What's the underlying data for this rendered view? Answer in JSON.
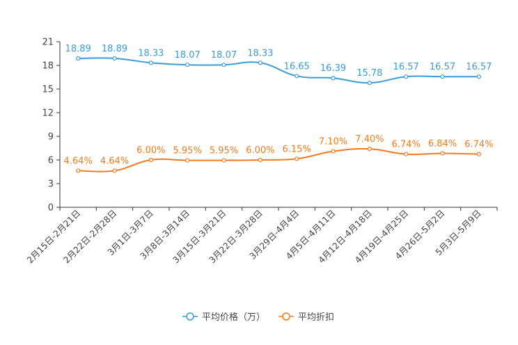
{
  "chart_data": {
    "type": "line",
    "title": "",
    "xlabel": "",
    "ylabel": "",
    "ylim": [
      0,
      21
    ],
    "yticks": [
      0,
      3,
      6,
      9,
      12,
      15,
      18,
      21
    ],
    "ytick_labels": [
      "0",
      "3",
      "6",
      "9",
      "12",
      "15",
      "18",
      "21"
    ],
    "grid": false,
    "legend_position": "bottom-center",
    "categories": [
      "2月15日-2月21日",
      "2月22日-2月28日",
      "3月1日-3月7日",
      "3月8日-3月14日",
      "3月15日-3月21日",
      "3月22日-3月28日",
      "3月29日-4月4日",
      "4月5日-4月11日",
      "4月12日-4月18日",
      "4月19日-4月25日",
      "4月26日-5月2日",
      "5月3日-5月9日"
    ],
    "series": [
      {
        "name": "平均价格（万）",
        "color": "#3a9bd5",
        "values": [
          18.89,
          18.89,
          18.33,
          18.07,
          18.07,
          18.33,
          16.65,
          16.39,
          15.78,
          16.57,
          16.57,
          16.57
        ],
        "labels": [
          "18.89",
          "18.89",
          "18.33",
          "18.07",
          "18.07",
          "18.33",
          "16.65",
          "16.39",
          "15.78",
          "16.57",
          "16.57",
          "16.57"
        ]
      },
      {
        "name": "平均折扣",
        "color": "#f27a1a",
        "values": [
          4.64,
          4.64,
          6.0,
          5.95,
          5.95,
          6.0,
          6.15,
          7.1,
          7.4,
          6.74,
          6.84,
          6.74
        ],
        "labels": [
          "4.64%",
          "4.64%",
          "6.00%",
          "5.95%",
          "5.95%",
          "6.00%",
          "6.15%",
          "7.10%",
          "7.40%",
          "6.74%",
          "6.84%",
          "6.74%"
        ]
      }
    ]
  }
}
